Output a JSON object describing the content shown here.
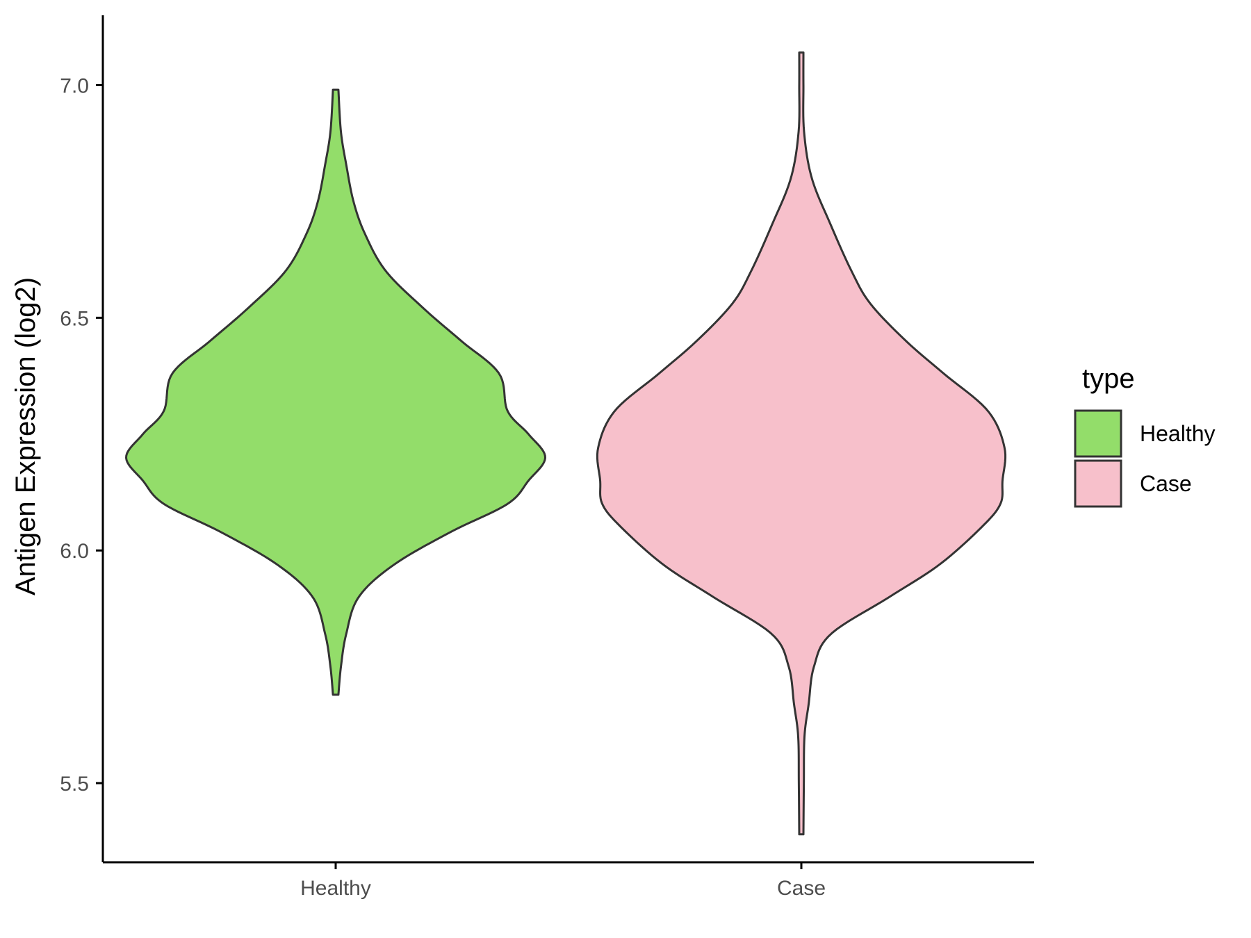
{
  "chart_data": {
    "type": "violin",
    "title": "",
    "xlabel": "",
    "ylabel": "Antigen Expression (log2)",
    "ylim": [
      5.33,
      7.15
    ],
    "yticks": [
      {
        "value": 5.5,
        "label": "5.5"
      },
      {
        "value": 6.0,
        "label": "6.0"
      },
      {
        "value": 6.5,
        "label": "6.5"
      },
      {
        "value": 7.0,
        "label": "7.0"
      }
    ],
    "categories": [
      "Healthy",
      "Case"
    ],
    "grid": false,
    "legend": {
      "title": "type",
      "position": "right",
      "entries": [
        {
          "label": "Healthy",
          "color": "#93dd6a"
        },
        {
          "label": "Case",
          "color": "#f7c0cb"
        }
      ]
    },
    "series": [
      {
        "name": "Healthy",
        "color": "#93dd6a",
        "min": 5.69,
        "max": 6.99,
        "density_profile": [
          [
            5.69,
            0.013
          ],
          [
            5.75,
            0.025
          ],
          [
            5.82,
            0.05
          ],
          [
            5.9,
            0.11
          ],
          [
            5.97,
            0.28
          ],
          [
            6.04,
            0.55
          ],
          [
            6.1,
            0.82
          ],
          [
            6.15,
            0.92
          ],
          [
            6.2,
            1.0
          ],
          [
            6.25,
            0.92
          ],
          [
            6.3,
            0.82
          ],
          [
            6.38,
            0.78
          ],
          [
            6.45,
            0.6
          ],
          [
            6.52,
            0.42
          ],
          [
            6.6,
            0.24
          ],
          [
            6.68,
            0.14
          ],
          [
            6.75,
            0.085
          ],
          [
            6.83,
            0.05
          ],
          [
            6.9,
            0.025
          ],
          [
            6.99,
            0.013
          ]
        ]
      },
      {
        "name": "Case",
        "color": "#f7c0cb",
        "min": 5.39,
        "max": 7.07,
        "density_profile": [
          [
            5.39,
            0.01
          ],
          [
            5.5,
            0.012
          ],
          [
            5.6,
            0.015
          ],
          [
            5.67,
            0.035
          ],
          [
            5.75,
            0.06
          ],
          [
            5.82,
            0.14
          ],
          [
            5.9,
            0.42
          ],
          [
            5.97,
            0.66
          ],
          [
            6.05,
            0.86
          ],
          [
            6.1,
            0.95
          ],
          [
            6.15,
            0.96
          ],
          [
            6.22,
            0.97
          ],
          [
            6.3,
            0.89
          ],
          [
            6.38,
            0.68
          ],
          [
            6.45,
            0.5
          ],
          [
            6.53,
            0.33
          ],
          [
            6.6,
            0.24
          ],
          [
            6.7,
            0.14
          ],
          [
            6.8,
            0.05
          ],
          [
            6.9,
            0.013
          ],
          [
            7.0,
            0.01
          ],
          [
            7.07,
            0.01
          ]
        ]
      }
    ]
  }
}
